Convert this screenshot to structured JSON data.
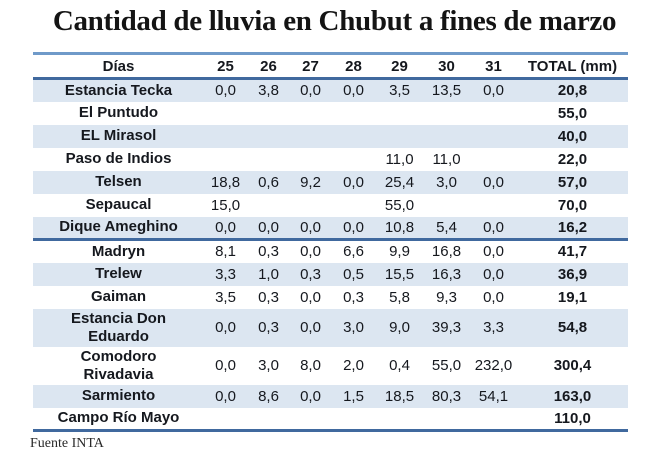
{
  "title": "Cantidad de lluvia en Chubut a fines de marzo",
  "source_note": "Fuente INTA",
  "colors": {
    "table_border_light": "#6f9ac9",
    "table_border_strong": "#40699e",
    "row_band_fill": "#dce6f1",
    "text": "#15181e"
  },
  "chart_data": {
    "type": "table",
    "title": "Cantidad de lluvia en Chubut a fines de marzo",
    "columns": [
      "Días",
      "25",
      "26",
      "27",
      "28",
      "29",
      "30",
      "31",
      "TOTAL (mm)"
    ],
    "units": "mm",
    "thick_divider_after_row": 6,
    "rows": [
      {
        "name": "Estancia Tecka",
        "values": [
          "0,0",
          "3,8",
          "0,0",
          "0,0",
          "3,5",
          "13,5",
          "0,0"
        ],
        "total": "20,8"
      },
      {
        "name": "El Puntudo",
        "values": [
          "",
          "",
          "",
          "",
          "",
          "",
          ""
        ],
        "total": "55,0"
      },
      {
        "name": "EL Mirasol",
        "values": [
          "",
          "",
          "",
          "",
          "",
          "",
          ""
        ],
        "total": "40,0"
      },
      {
        "name": "Paso de Indios",
        "values": [
          "",
          "",
          "",
          "",
          "11,0",
          "11,0",
          ""
        ],
        "total": "22,0"
      },
      {
        "name": "Telsen",
        "values": [
          "18,8",
          "0,6",
          "9,2",
          "0,0",
          "25,4",
          "3,0",
          "0,0"
        ],
        "total": "57,0"
      },
      {
        "name": "Sepaucal",
        "values": [
          "15,0",
          "",
          "",
          "",
          "55,0",
          "",
          ""
        ],
        "total": "70,0"
      },
      {
        "name": "Dique Ameghino",
        "values": [
          "0,0",
          "0,0",
          "0,0",
          "0,0",
          "10,8",
          "5,4",
          "0,0"
        ],
        "total": "16,2"
      },
      {
        "name": "Madryn",
        "values": [
          "8,1",
          "0,3",
          "0,0",
          "6,6",
          "9,9",
          "16,8",
          "0,0"
        ],
        "total": "41,7"
      },
      {
        "name": "Trelew",
        "values": [
          "3,3",
          "1,0",
          "0,3",
          "0,5",
          "15,5",
          "16,3",
          "0,0"
        ],
        "total": "36,9"
      },
      {
        "name": "Gaiman",
        "values": [
          "3,5",
          "0,3",
          "0,0",
          "0,3",
          "5,8",
          "9,3",
          "0,0"
        ],
        "total": "19,1"
      },
      {
        "name": "Estancia Don Eduardo",
        "values": [
          "0,0",
          "0,3",
          "0,0",
          "3,0",
          "9,0",
          "39,3",
          "3,3"
        ],
        "total": "54,8"
      },
      {
        "name": "Comodoro Rivadavia",
        "values": [
          "0,0",
          "3,0",
          "8,0",
          "2,0",
          "0,4",
          "55,0",
          "232,0"
        ],
        "total": "300,4"
      },
      {
        "name": "Sarmiento",
        "values": [
          "0,0",
          "8,6",
          "0,0",
          "1,5",
          "18,5",
          "80,3",
          "54,1"
        ],
        "total": "163,0"
      },
      {
        "name": "Campo Río Mayo",
        "values": [
          "",
          "",
          "",
          "",
          "",
          "",
          ""
        ],
        "total": "110,0"
      }
    ]
  }
}
